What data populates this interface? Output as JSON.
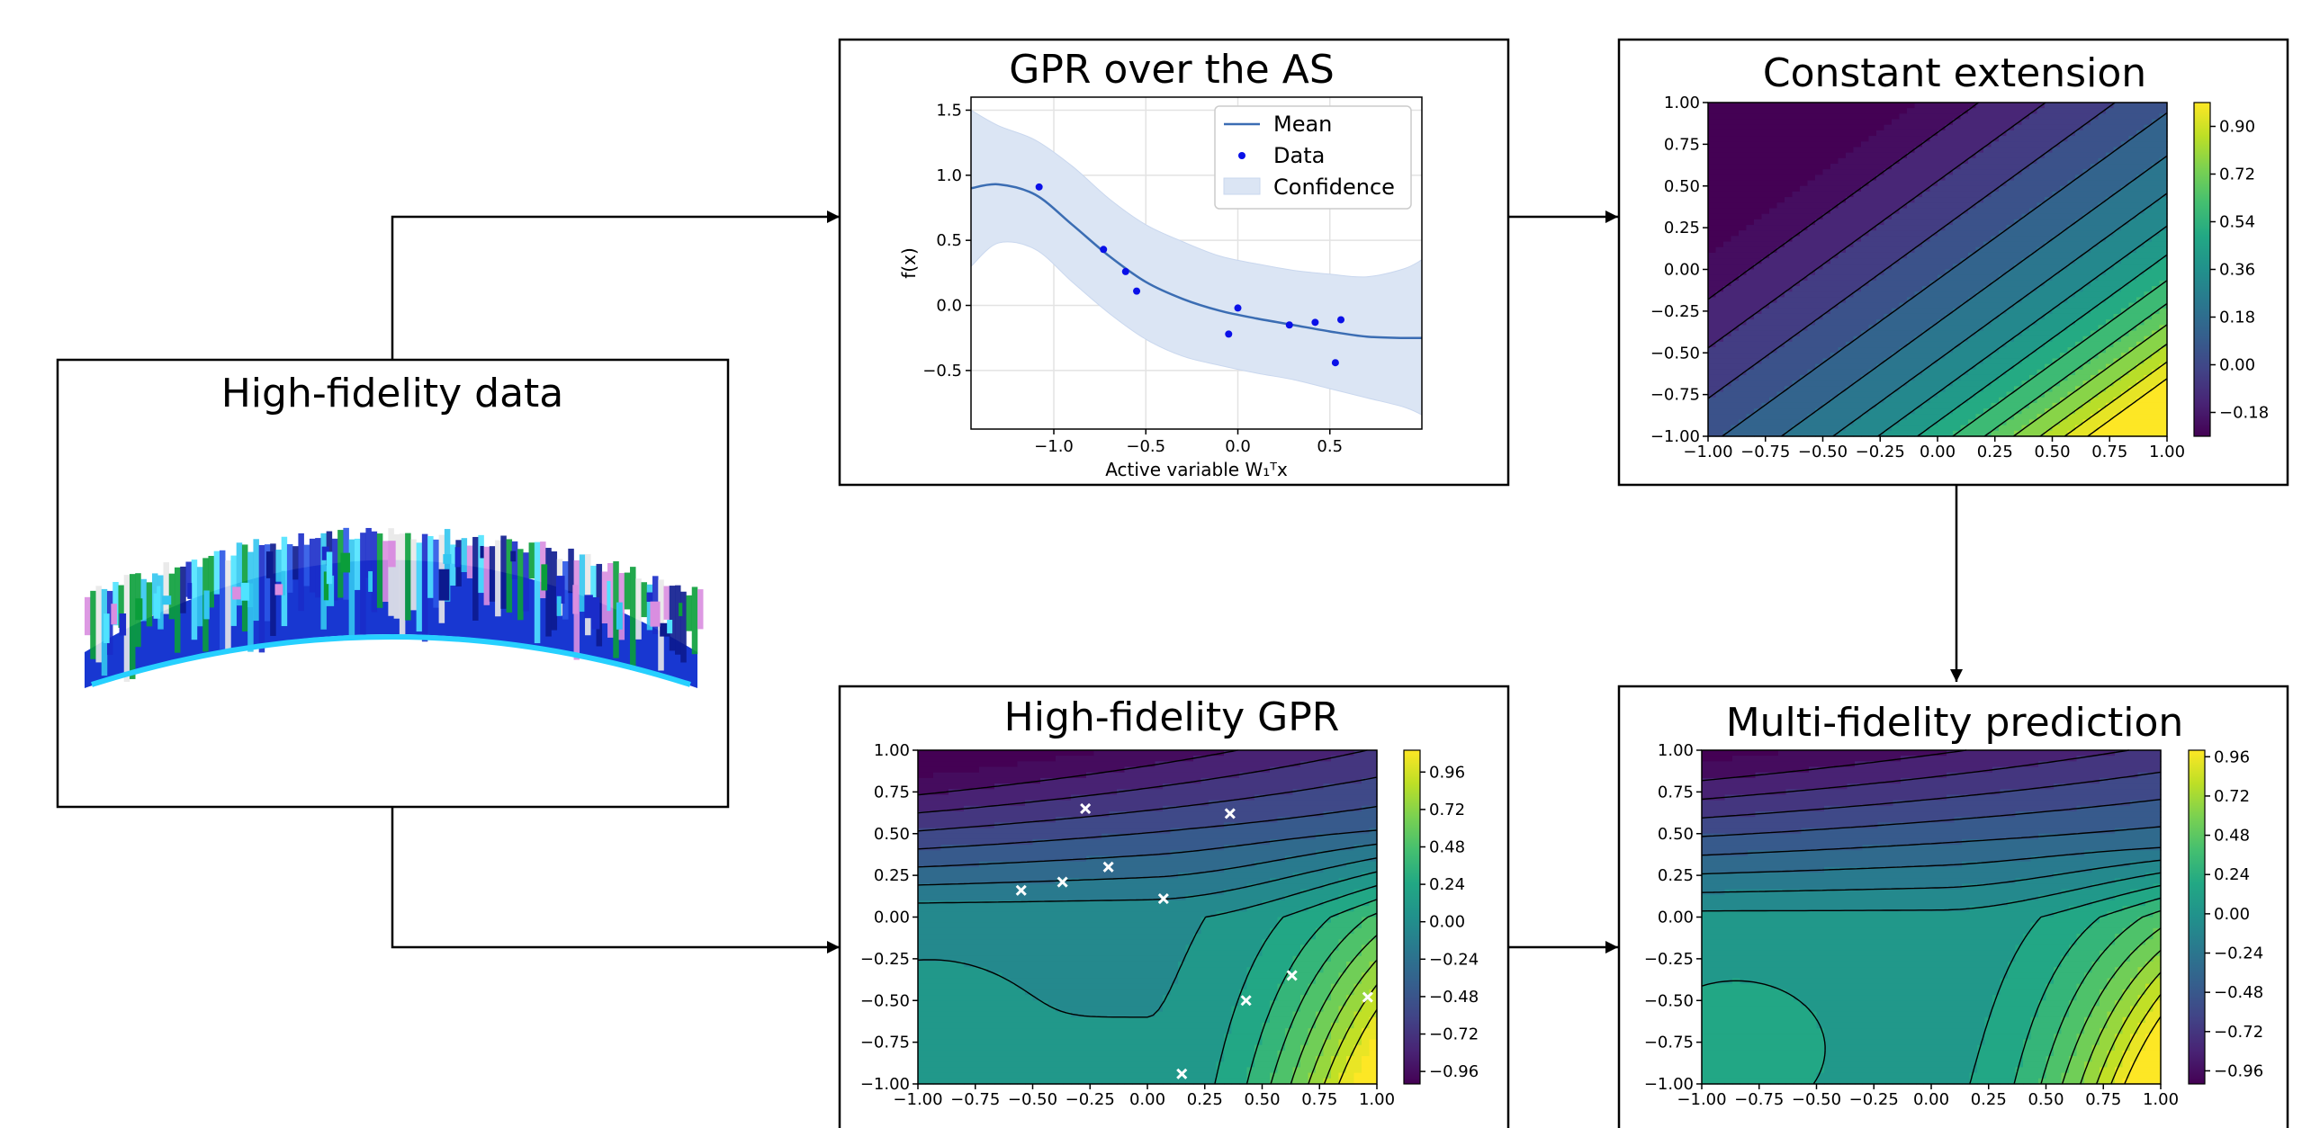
{
  "boxes": {
    "hf_data": {
      "title": "High-fidelity data"
    },
    "gpr_as": {
      "title": "GPR over the AS"
    },
    "const_ext": {
      "title": "Constant extension"
    },
    "hf_gpr": {
      "title": "High-fidelity GPR"
    },
    "mf_pred": {
      "title": "Multi-fidelity prediction"
    }
  },
  "chart_data": [
    {
      "id": "gpr_as",
      "type": "line",
      "title": "GPR over the AS",
      "xlabel": "Active variable W₁ᵀx",
      "ylabel": "f(x)",
      "xlim": [
        -1.45,
        1.0
      ],
      "ylim": [
        -0.95,
        1.6
      ],
      "xticks": [
        -1.0,
        -0.5,
        0.0,
        0.5
      ],
      "xtick_labels": [
        "−1.0",
        "−0.5",
        "0.0",
        "0.5"
      ],
      "yticks": [
        -0.5,
        0.0,
        0.5,
        1.0,
        1.5
      ],
      "ytick_labels": [
        "−0.5",
        "0.0",
        "0.5",
        "1.0",
        "1.5"
      ],
      "grid": true,
      "legend": {
        "placement": "top-right",
        "entries": [
          "Mean",
          "Data",
          "Confidence"
        ]
      },
      "colors": {
        "mean": "#3b6db3",
        "data": "#0a10e8",
        "band": "#dbe5f4"
      },
      "mean": {
        "x": [
          -1.45,
          -1.3,
          -1.1,
          -0.9,
          -0.7,
          -0.5,
          -0.3,
          -0.1,
          0.1,
          0.3,
          0.5,
          0.7,
          0.9,
          1.0
        ],
        "y": [
          0.9,
          0.93,
          0.85,
          0.62,
          0.38,
          0.18,
          0.05,
          -0.04,
          -0.1,
          -0.15,
          -0.2,
          -0.24,
          -0.25,
          -0.25
        ]
      },
      "upper": [
        1.5,
        1.38,
        1.27,
        1.07,
        0.82,
        0.62,
        0.49,
        0.38,
        0.32,
        0.27,
        0.24,
        0.22,
        0.28,
        0.35
      ],
      "lower": [
        0.3,
        0.48,
        0.43,
        0.18,
        -0.06,
        -0.26,
        -0.39,
        -0.46,
        -0.52,
        -0.57,
        -0.64,
        -0.71,
        -0.78,
        -0.84
      ],
      "points": [
        [
          -1.08,
          0.91
        ],
        [
          -0.73,
          0.43
        ],
        [
          -0.61,
          0.26
        ],
        [
          -0.55,
          0.11
        ],
        [
          -0.05,
          -0.22
        ],
        [
          0.0,
          -0.02
        ],
        [
          0.28,
          -0.15
        ],
        [
          0.42,
          -0.13
        ],
        [
          0.53,
          -0.44
        ],
        [
          0.56,
          -0.11
        ]
      ]
    },
    {
      "id": "const_ext",
      "type": "heatmap",
      "title": "Constant extension",
      "xlim": [
        -1.0,
        1.0
      ],
      "ylim": [
        -1.0,
        1.0
      ],
      "ticks": [
        -1.0,
        -0.75,
        -0.5,
        -0.25,
        0.0,
        0.25,
        0.5,
        0.75,
        1.0
      ],
      "tick_labels": [
        "−1.00",
        "−0.75",
        "−0.50",
        "−0.25",
        "0.00",
        "0.25",
        "0.50",
        "0.75",
        "1.00"
      ],
      "colorbar": {
        "range": [
          -0.27,
          0.99
        ],
        "ticks": [
          -0.18,
          0.0,
          0.18,
          0.36,
          0.54,
          0.72,
          0.9
        ],
        "labels": [
          "−0.18",
          "0.00",
          "0.18",
          "0.36",
          "0.54",
          "0.72",
          "0.90"
        ]
      }
    },
    {
      "id": "hf_gpr",
      "type": "heatmap",
      "title": "High-fidelity GPR",
      "xlim": [
        -1.0,
        1.0
      ],
      "ylim": [
        -1.0,
        1.0
      ],
      "ticks": [
        -1.0,
        -0.75,
        -0.5,
        -0.25,
        0.0,
        0.25,
        0.5,
        0.75,
        1.0
      ],
      "tick_labels": [
        "−1.00",
        "−0.75",
        "−0.50",
        "−0.25",
        "0.00",
        "0.25",
        "0.50",
        "0.75",
        "1.00"
      ],
      "colorbar": {
        "range": [
          -1.04,
          1.1
        ],
        "ticks": [
          -0.96,
          -0.72,
          -0.48,
          -0.24,
          0.0,
          0.24,
          0.48,
          0.72,
          0.96
        ],
        "labels": [
          "−0.96",
          "−0.72",
          "−0.48",
          "−0.24",
          "0.00",
          "0.24",
          "0.48",
          "0.72",
          "0.96"
        ]
      },
      "samples": [
        [
          -0.27,
          0.65
        ],
        [
          0.36,
          0.62
        ],
        [
          -0.17,
          0.3
        ],
        [
          -0.37,
          0.21
        ],
        [
          -0.55,
          0.16
        ],
        [
          0.07,
          0.11
        ],
        [
          0.63,
          -0.35
        ],
        [
          0.43,
          -0.5
        ],
        [
          0.96,
          -0.48
        ],
        [
          0.15,
          -0.94
        ]
      ]
    },
    {
      "id": "mf_pred",
      "type": "heatmap",
      "title": "Multi-fidelity prediction",
      "xlim": [
        -1.0,
        1.0
      ],
      "ylim": [
        -1.0,
        1.0
      ],
      "ticks": [
        -1.0,
        -0.75,
        -0.5,
        -0.25,
        0.0,
        0.25,
        0.5,
        0.75,
        1.0
      ],
      "tick_labels": [
        "−1.00",
        "−0.75",
        "−0.50",
        "−0.25",
        "0.00",
        "0.25",
        "0.50",
        "0.75",
        "1.00"
      ],
      "colorbar": {
        "range": [
          -1.04,
          1.0
        ],
        "ticks": [
          -0.96,
          -0.72,
          -0.48,
          -0.24,
          0.0,
          0.24,
          0.48,
          0.72,
          0.96
        ],
        "labels": [
          "−0.96",
          "−0.72",
          "−0.48",
          "−0.24",
          "0.00",
          "0.24",
          "0.48",
          "0.72",
          "0.96"
        ]
      }
    }
  ],
  "colors": {
    "viridis": [
      "#440154",
      "#482475",
      "#414487",
      "#355f8d",
      "#2a788e",
      "#21918c",
      "#22a884",
      "#44bf70",
      "#7ad151",
      "#bddf26",
      "#fde725"
    ],
    "frame": "#000000",
    "arrow": "#000000",
    "marker": "#ffffff"
  },
  "icons": {
    "hf_image": "wind-turbine-blade-pressure-field-render"
  }
}
